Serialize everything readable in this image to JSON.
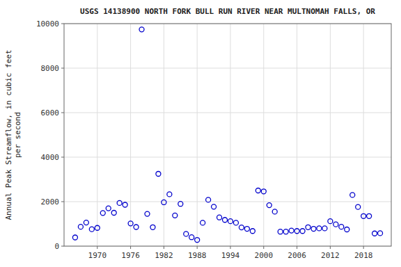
{
  "chart_data": {
    "type": "scatter",
    "title": "USGS 14138900 NORTH FORK BULL RUN RIVER NEAR MULTNOMAH FALLS, OR",
    "ylabel": "Annual Peak Streamflow, in cubic feet\nper second",
    "x": [
      1966,
      1967,
      1968,
      1969,
      1970,
      1971,
      1972,
      1973,
      1974,
      1975,
      1976,
      1977,
      1978,
      1979,
      1980,
      1981,
      1982,
      1983,
      1984,
      1985,
      1986,
      1987,
      1988,
      1989,
      1990,
      1991,
      1992,
      1993,
      1994,
      1995,
      1996,
      1997,
      1998,
      1999,
      2000,
      2001,
      2002,
      2003,
      2004,
      2005,
      2006,
      2007,
      2008,
      2009,
      2010,
      2011,
      2012,
      2013,
      2014,
      2015,
      2016,
      2017,
      2018,
      2019,
      2020,
      2021
    ],
    "values": [
      390,
      870,
      1060,
      760,
      820,
      1490,
      1700,
      1500,
      1940,
      1860,
      1020,
      860,
      9740,
      1450,
      850,
      3250,
      1970,
      2330,
      1380,
      1900,
      550,
      400,
      280,
      1050,
      2080,
      1770,
      1290,
      1180,
      1120,
      1050,
      840,
      780,
      680,
      2500,
      2460,
      1840,
      1550,
      650,
      650,
      700,
      680,
      680,
      850,
      780,
      800,
      800,
      1120,
      980,
      870,
      750,
      2300,
      1760,
      1350,
      1350,
      570,
      580
    ],
    "color": "#0000cc",
    "marker": "circle",
    "xlim": [
      1964,
      2023
    ],
    "ylim": [
      0,
      10000
    ],
    "xticks": [
      1970,
      1976,
      1982,
      1988,
      1994,
      2000,
      2006,
      2012,
      2018
    ],
    "yticks": [
      0,
      2000,
      4000,
      6000,
      8000,
      10000
    ],
    "grid": true
  }
}
